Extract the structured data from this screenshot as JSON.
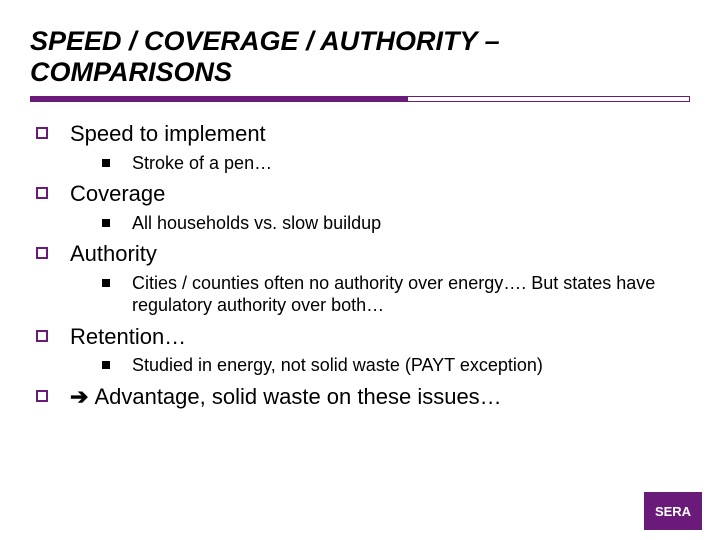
{
  "title": "SPEED / COVERAGE / AUTHORITY – COMPARISONS",
  "title_fontsize": 27,
  "title_color": "#000000",
  "accent_color": "#6a1b7a",
  "rule": {
    "total_width": 660,
    "fill_width": 378,
    "height": 6
  },
  "items": {
    "speed": {
      "label": "Speed to implement",
      "sub": "Stroke of a pen…"
    },
    "coverage": {
      "label": "Coverage",
      "sub": "All households vs. slow buildup"
    },
    "authority": {
      "label": "Authority",
      "sub": "Cities / counties often no authority over energy…. But states have regulatory authority over both…"
    },
    "retention": {
      "label": "Retention…",
      "sub": "Studied in energy, not solid waste (PAYT exception)"
    },
    "advantage": {
      "arrow": "➔",
      "label": "Advantage, solid waste on these issues…"
    }
  },
  "l1_fontsize": 22,
  "l2_fontsize": 18,
  "badge": {
    "text": "SERA",
    "bg": "#6a1b7a",
    "color": "#ffffff",
    "width": 58,
    "height": 38,
    "fontsize": 13
  }
}
